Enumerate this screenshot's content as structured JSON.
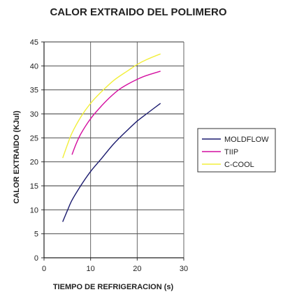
{
  "chart_data": {
    "type": "line",
    "title": "CALOR EXTRAIDO DEL POLIMERO",
    "xlabel": "TIEMPO DE REFRIGERACION (s)",
    "ylabel": "CALOR EXTRAIDO (KJul)",
    "xlim": [
      0,
      30
    ],
    "ylim": [
      0,
      45
    ],
    "xticks": [
      "0",
      "10",
      "20",
      "30"
    ],
    "yticks": [
      "0",
      "5",
      "10",
      "15",
      "20",
      "25",
      "30",
      "35",
      "40",
      "45"
    ],
    "grid": true,
    "legend_position": "right",
    "series": [
      {
        "name": "MOLDFLOW",
        "color": "#1a1a6e",
        "x": [
          4,
          5,
          6,
          8,
          10,
          12,
          15,
          18,
          20,
          22,
          25
        ],
        "y": [
          7.5,
          9.8,
          12.0,
          15.2,
          18.0,
          20.3,
          23.8,
          26.7,
          28.5,
          30.0,
          32.2
        ]
      },
      {
        "name": "TIIP",
        "color": "#d40fa0",
        "x": [
          6,
          7,
          8,
          10,
          12,
          14,
          16,
          18,
          20,
          22,
          25
        ],
        "y": [
          21.5,
          24.0,
          26.0,
          29.0,
          31.3,
          33.3,
          35.0,
          36.2,
          37.2,
          38.0,
          38.9
        ]
      },
      {
        "name": "C-COOL",
        "color": "#f2ef3a",
        "x": [
          4,
          5,
          6,
          8,
          10,
          12,
          15,
          18,
          20,
          22,
          25
        ],
        "y": [
          20.8,
          23.5,
          26.0,
          29.5,
          32.2,
          34.3,
          37.0,
          39.0,
          40.3,
          41.3,
          42.5
        ]
      }
    ]
  }
}
